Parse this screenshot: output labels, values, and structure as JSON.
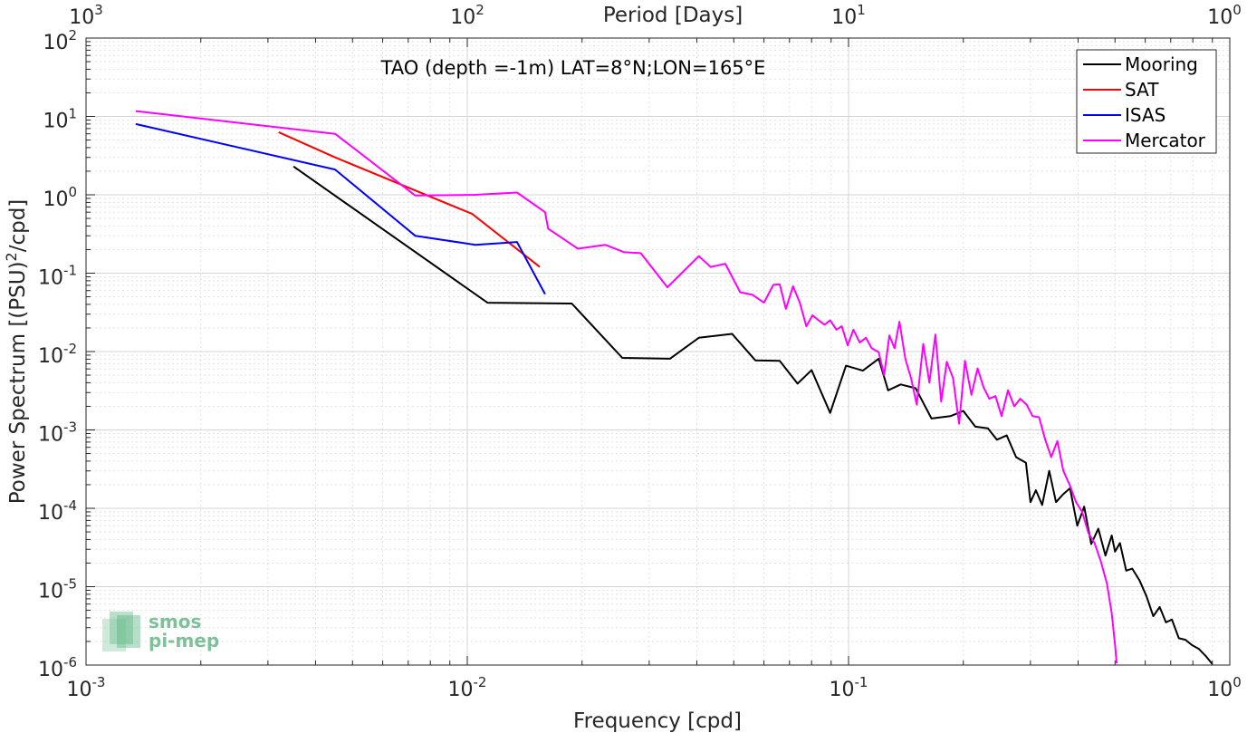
{
  "chart_data": {
    "type": "line",
    "title": "TAO (depth =-1m) LAT=8°N;LON=165°E",
    "xlabel": "Frequency [cpd]",
    "ylabel": "Power Spectrum [(PSU)²/cpd]",
    "top_xlabel": "Period [Days]",
    "xscale": "log",
    "yscale": "log",
    "xlim": [
      0.001,
      1
    ],
    "ylim": [
      1e-06,
      100
    ],
    "grid": true,
    "legend_position": "top-right",
    "x_ticks": [
      0.001,
      0.01,
      0.1,
      1
    ],
    "x_tick_labels": [
      {
        "base": "10",
        "exp": "-3"
      },
      {
        "base": "10",
        "exp": "-2"
      },
      {
        "base": "10",
        "exp": "-1"
      },
      {
        "base": "10",
        "exp": "0"
      }
    ],
    "y_ticks": [
      1e-06,
      1e-05,
      0.0001,
      0.001,
      0.01,
      0.1,
      1,
      10,
      100
    ],
    "y_tick_labels": [
      {
        "base": "10",
        "exp": "-6"
      },
      {
        "base": "10",
        "exp": "-5"
      },
      {
        "base": "10",
        "exp": "-4"
      },
      {
        "base": "10",
        "exp": "-3"
      },
      {
        "base": "10",
        "exp": "-2"
      },
      {
        "base": "10",
        "exp": "-1"
      },
      {
        "base": "10",
        "exp": "0"
      },
      {
        "base": "10",
        "exp": "1"
      },
      {
        "base": "10",
        "exp": "2"
      }
    ],
    "top_ticks": [
      1000,
      100,
      10,
      1
    ],
    "top_tick_labels": [
      {
        "base": "10",
        "exp": "3"
      },
      {
        "base": "10",
        "exp": "2"
      },
      {
        "base": "10",
        "exp": "1"
      },
      {
        "base": "10",
        "exp": "0"
      }
    ],
    "series": [
      {
        "name": "Mooring",
        "color": "#000000",
        "points": [
          [
            0.0035,
            2.3
          ],
          [
            0.0113,
            0.042
          ],
          [
            0.0188,
            0.041
          ],
          [
            0.0255,
            0.0083
          ],
          [
            0.034,
            0.0081
          ],
          [
            0.0405,
            0.015
          ],
          [
            0.0495,
            0.0168
          ],
          [
            0.057,
            0.0077
          ],
          [
            0.066,
            0.0076
          ],
          [
            0.0735,
            0.0039
          ],
          [
            0.08,
            0.0058
          ],
          [
            0.0895,
            0.00165
          ],
          [
            0.0985,
            0.0066
          ],
          [
            0.109,
            0.0057
          ],
          [
            0.12,
            0.0081
          ],
          [
            0.127,
            0.0032
          ],
          [
            0.137,
            0.0038
          ],
          [
            0.15,
            0.0034
          ],
          [
            0.165,
            0.0014
          ],
          [
            0.185,
            0.0015
          ],
          [
            0.2,
            0.00175
          ],
          [
            0.215,
            0.0011
          ],
          [
            0.232,
            0.00105
          ],
          [
            0.245,
            0.00075
          ],
          [
            0.26,
            0.00085
          ],
          [
            0.275,
            0.00045
          ],
          [
            0.292,
            0.00038
          ],
          [
            0.3,
            0.00012
          ],
          [
            0.31,
            0.00017
          ],
          [
            0.322,
            0.00011
          ],
          [
            0.336,
            0.0003
          ],
          [
            0.35,
            0.00012
          ],
          [
            0.365,
            0.00015
          ],
          [
            0.381,
            0.00018
          ],
          [
            0.398,
            6e-05
          ],
          [
            0.415,
            0.000105
          ],
          [
            0.433,
            3.5e-05
          ],
          [
            0.452,
            5.5e-05
          ],
          [
            0.472,
            2.5e-05
          ],
          [
            0.49,
            4.5e-05
          ],
          [
            0.5,
            2.8e-05
          ],
          [
            0.515,
            3.6e-05
          ],
          [
            0.535,
            1.6e-05
          ],
          [
            0.555,
            1.7e-05
          ],
          [
            0.58,
            1.2e-05
          ],
          [
            0.605,
            7.5e-06
          ],
          [
            0.63,
            4.2e-06
          ],
          [
            0.655,
            5.5e-06
          ],
          [
            0.68,
            3.5e-06
          ],
          [
            0.705,
            3.8e-06
          ],
          [
            0.735,
            2.2e-06
          ],
          [
            0.765,
            2.1e-06
          ],
          [
            0.795,
            1.8e-06
          ],
          [
            0.83,
            1.6e-06
          ],
          [
            0.865,
            1.3e-06
          ],
          [
            0.9,
            1.03e-06
          ]
        ]
      },
      {
        "name": "SAT",
        "color": "#ff0000",
        "points": [
          [
            0.0032,
            6.3
          ],
          [
            0.0045,
            3.0
          ],
          [
            0.0103,
            0.57
          ],
          [
            0.0155,
            0.12
          ]
        ]
      },
      {
        "name": "ISAS",
        "color": "#0000ff",
        "points": [
          [
            0.00135,
            8.0
          ],
          [
            0.0045,
            2.1
          ],
          [
            0.0073,
            0.3
          ],
          [
            0.0105,
            0.23
          ],
          [
            0.0135,
            0.25
          ],
          [
            0.016,
            0.054
          ]
        ]
      },
      {
        "name": "Mercator",
        "color": "#ff00ff",
        "points": [
          [
            0.00135,
            11.7
          ],
          [
            0.0045,
            6.0
          ],
          [
            0.0073,
            0.98
          ],
          [
            0.0105,
            1.0
          ],
          [
            0.0135,
            1.07
          ],
          [
            0.016,
            0.6
          ],
          [
            0.0163,
            0.37
          ],
          [
            0.0195,
            0.205
          ],
          [
            0.023,
            0.23
          ],
          [
            0.0258,
            0.185
          ],
          [
            0.0285,
            0.18
          ],
          [
            0.0335,
            0.066
          ],
          [
            0.0365,
            0.1
          ],
          [
            0.0405,
            0.165
          ],
          [
            0.0435,
            0.12
          ],
          [
            0.0475,
            0.132
          ],
          [
            0.052,
            0.057
          ],
          [
            0.056,
            0.053
          ],
          [
            0.06,
            0.042
          ],
          [
            0.0635,
            0.071
          ],
          [
            0.066,
            0.072
          ],
          [
            0.0685,
            0.035
          ],
          [
            0.0715,
            0.068
          ],
          [
            0.0745,
            0.042
          ],
          [
            0.0775,
            0.021
          ],
          [
            0.0805,
            0.029
          ],
          [
            0.0835,
            0.025
          ],
          [
            0.0865,
            0.022
          ],
          [
            0.0895,
            0.025
          ],
          [
            0.093,
            0.019
          ],
          [
            0.096,
            0.021
          ],
          [
            0.0995,
            0.012
          ],
          [
            0.103,
            0.019
          ],
          [
            0.107,
            0.013
          ],
          [
            0.111,
            0.015
          ],
          [
            0.115,
            0.011
          ],
          [
            0.12,
            0.0098
          ],
          [
            0.124,
            0.005
          ],
          [
            0.128,
            0.016
          ],
          [
            0.132,
            0.011
          ],
          [
            0.136,
            0.024
          ],
          [
            0.141,
            0.008
          ],
          [
            0.146,
            0.0045
          ],
          [
            0.151,
            0.0021
          ],
          [
            0.157,
            0.0125
          ],
          [
            0.163,
            0.004
          ],
          [
            0.169,
            0.0165
          ],
          [
            0.175,
            0.0023
          ],
          [
            0.181,
            0.0074
          ],
          [
            0.188,
            0.0046
          ],
          [
            0.195,
            0.0012
          ],
          [
            0.202,
            0.0076
          ],
          [
            0.21,
            0.0028
          ],
          [
            0.218,
            0.0061
          ],
          [
            0.226,
            0.0035
          ],
          [
            0.234,
            0.0025
          ],
          [
            0.243,
            0.0027
          ],
          [
            0.252,
            0.0015
          ],
          [
            0.262,
            0.0032
          ],
          [
            0.272,
            0.002
          ],
          [
            0.282,
            0.0025
          ],
          [
            0.293,
            0.0021
          ],
          [
            0.304,
            0.0015
          ],
          [
            0.316,
            0.00145
          ],
          [
            0.328,
            0.00075
          ],
          [
            0.34,
            0.00045
          ],
          [
            0.353,
            0.00072
          ],
          [
            0.366,
            0.0003
          ],
          [
            0.38,
            0.0002
          ],
          [
            0.395,
            0.00012
          ],
          [
            0.41,
            9e-05
          ],
          [
            0.426,
            4.8e-05
          ],
          [
            0.442,
            3.6e-05
          ],
          [
            0.459,
            2.1e-05
          ],
          [
            0.476,
            1.1e-05
          ],
          [
            0.49,
            4.6e-06
          ],
          [
            0.5,
            1.8e-06
          ],
          [
            0.505,
            1.05e-06
          ]
        ]
      }
    ]
  },
  "logo": {
    "line1": "smos",
    "line2": "pi-mep"
  }
}
